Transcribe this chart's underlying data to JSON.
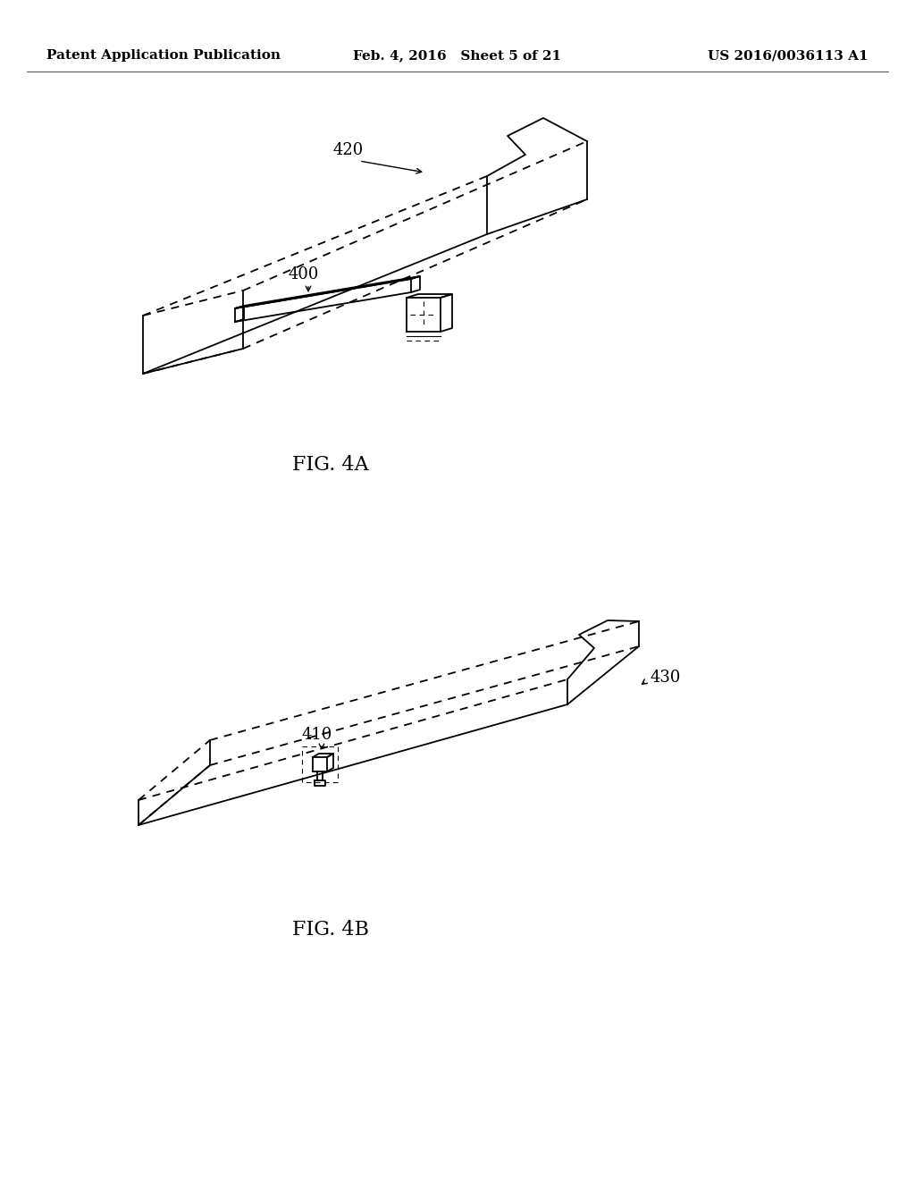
{
  "background_color": "#ffffff",
  "header_left": "Patent Application Publication",
  "header_center": "Feb. 4, 2016   Sheet 5 of 21",
  "header_right": "US 2016/0036113 A1",
  "header_fontsize": 11,
  "fig4a_label": "FIG. 4A",
  "fig4b_label": "FIG. 4B",
  "label_420": "420",
  "label_400": "400",
  "label_410": "410",
  "label_430": "430",
  "line_color": "#000000",
  "linewidth": 1.3,
  "thin_linewidth": 0.8
}
